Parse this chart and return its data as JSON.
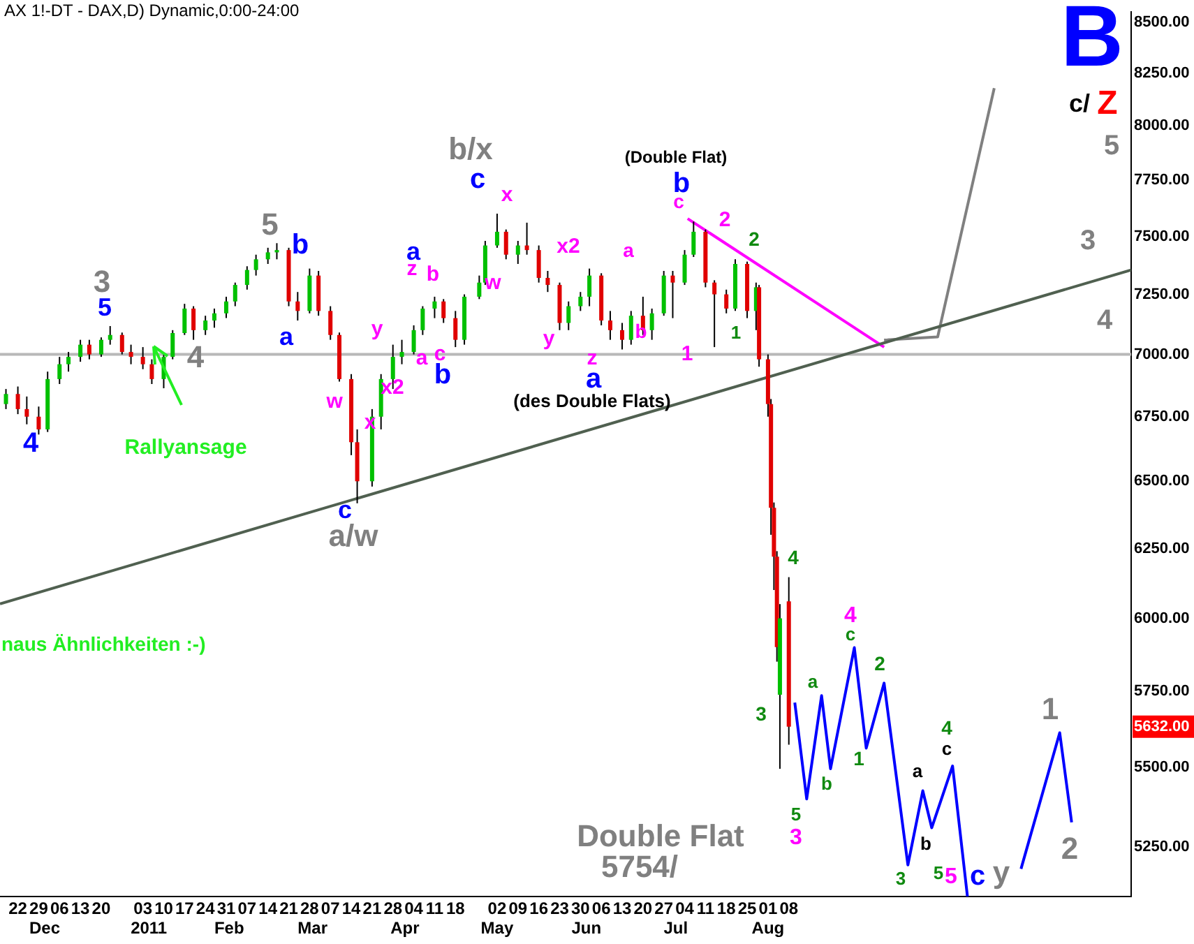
{
  "chart_data": {
    "type": "candlestick",
    "title": "AX 1!-DT - DAX,D) Dynamic,0:00-24:00",
    "x": [
      "2010-11-18",
      "2010-11-22",
      "2010-11-25",
      "2010-11-29",
      "2010-12-02",
      "2010-12-06",
      "2010-12-09",
      "2010-12-13",
      "2010-12-16",
      "2010-12-20",
      "2010-12-23",
      "2010-12-27",
      "2010-12-30",
      "2011-01-03",
      "2011-01-06",
      "2011-01-10",
      "2011-01-13",
      "2011-01-17",
      "2011-01-20",
      "2011-01-24",
      "2011-01-27",
      "2011-01-31",
      "2011-02-03",
      "2011-02-07",
      "2011-02-10",
      "2011-02-14",
      "2011-02-17",
      "2011-02-21",
      "2011-02-24",
      "2011-02-28",
      "2011-03-03",
      "2011-03-07",
      "2011-03-10",
      "2011-03-14",
      "2011-03-16",
      "2011-03-21",
      "2011-03-24",
      "2011-03-28",
      "2011-03-31",
      "2011-04-04",
      "2011-04-07",
      "2011-04-11",
      "2011-04-14",
      "2011-04-18",
      "2011-04-21",
      "2011-04-26",
      "2011-04-28",
      "2011-05-02",
      "2011-05-05",
      "2011-05-09",
      "2011-05-12",
      "2011-05-16",
      "2011-05-19",
      "2011-05-23",
      "2011-05-26",
      "2011-05-30",
      "2011-06-02",
      "2011-06-06",
      "2011-06-09",
      "2011-06-13",
      "2011-06-16",
      "2011-06-20",
      "2011-06-23",
      "2011-06-27",
      "2011-06-30",
      "2011-07-04",
      "2011-07-07",
      "2011-07-11",
      "2011-07-14",
      "2011-07-18",
      "2011-07-21",
      "2011-07-25",
      "2011-07-28",
      "2011-07-29",
      "2011-08-01",
      "2011-08-02",
      "2011-08-03",
      "2011-08-04",
      "2011-08-05",
      "2011-08-08"
    ],
    "ohlc": [
      [
        6800,
        6860,
        6780,
        6840
      ],
      [
        6840,
        6870,
        6760,
        6780
      ],
      [
        6780,
        6830,
        6720,
        6750
      ],
      [
        6750,
        6790,
        6680,
        6700
      ],
      [
        6700,
        6930,
        6690,
        6900
      ],
      [
        6900,
        6990,
        6880,
        6960
      ],
      [
        6960,
        7010,
        6930,
        6990
      ],
      [
        6990,
        7060,
        6970,
        7040
      ],
      [
        7040,
        7060,
        6980,
        7000
      ],
      [
        7000,
        7070,
        6990,
        7060
      ],
      [
        7060,
        7117,
        7040,
        7080
      ],
      [
        7080,
        7090,
        7000,
        7010
      ],
      [
        7010,
        7040,
        6960,
        6990
      ],
      [
        6990,
        7030,
        6940,
        6960
      ],
      [
        6960,
        6980,
        6880,
        6900
      ],
      [
        6900,
        7000,
        6863,
        6990
      ],
      [
        6990,
        7100,
        6980,
        7088
      ],
      [
        7088,
        7210,
        7080,
        7190
      ],
      [
        7190,
        7200,
        7060,
        7100
      ],
      [
        7100,
        7160,
        7080,
        7140
      ],
      [
        7140,
        7190,
        7110,
        7170
      ],
      [
        7170,
        7240,
        7150,
        7220
      ],
      [
        7220,
        7300,
        7200,
        7290
      ],
      [
        7290,
        7370,
        7270,
        7354
      ],
      [
        7354,
        7420,
        7330,
        7400
      ],
      [
        7400,
        7450,
        7380,
        7430
      ],
      [
        7430,
        7470,
        7400,
        7440
      ],
      [
        7440,
        7450,
        7200,
        7220
      ],
      [
        7220,
        7260,
        7140,
        7180
      ],
      [
        7180,
        7360,
        7170,
        7330
      ],
      [
        7330,
        7350,
        7160,
        7180
      ],
      [
        7180,
        7200,
        7060,
        7080
      ],
      [
        7080,
        7090,
        6890,
        6900
      ],
      [
        6900,
        6920,
        6600,
        6650
      ],
      [
        6650,
        6700,
        6417,
        6500
      ],
      [
        6500,
        6780,
        6480,
        6750
      ],
      [
        6750,
        6920,
        6700,
        6900
      ],
      [
        6900,
        7040,
        6860,
        6990
      ],
      [
        6990,
        7060,
        6960,
        7010
      ],
      [
        7010,
        7120,
        7000,
        7100
      ],
      [
        7100,
        7200,
        7080,
        7190
      ],
      [
        7190,
        7240,
        7150,
        7220
      ],
      [
        7220,
        7230,
        7130,
        7150
      ],
      [
        7150,
        7180,
        7030,
        7060
      ],
      [
        7060,
        7250,
        7040,
        7240
      ],
      [
        7240,
        7330,
        7230,
        7300
      ],
      [
        7300,
        7480,
        7290,
        7460
      ],
      [
        7460,
        7600,
        7450,
        7520
      ],
      [
        7520,
        7530,
        7400,
        7420
      ],
      [
        7420,
        7480,
        7380,
        7460
      ],
      [
        7460,
        7560,
        7420,
        7440
      ],
      [
        7440,
        7460,
        7300,
        7320
      ],
      [
        7320,
        7350,
        7260,
        7290
      ],
      [
        7290,
        7300,
        7100,
        7130
      ],
      [
        7130,
        7220,
        7100,
        7200
      ],
      [
        7200,
        7260,
        7180,
        7240
      ],
      [
        7240,
        7360,
        7200,
        7330
      ],
      [
        7330,
        7340,
        7120,
        7140
      ],
      [
        7140,
        7180,
        7060,
        7100
      ],
      [
        7100,
        7130,
        7020,
        7060
      ],
      [
        7060,
        7180,
        7040,
        7160
      ],
      [
        7160,
        7240,
        7080,
        7100
      ],
      [
        7100,
        7190,
        7060,
        7170
      ],
      [
        7170,
        7350,
        7160,
        7330
      ],
      [
        7330,
        7350,
        7150,
        7300
      ],
      [
        7300,
        7440,
        7290,
        7420
      ],
      [
        7420,
        7565,
        7410,
        7520
      ],
      [
        7520,
        7530,
        7280,
        7300
      ],
      [
        7300,
        7310,
        7030,
        7250
      ],
      [
        7250,
        7270,
        7170,
        7190
      ],
      [
        7190,
        7400,
        7180,
        7380
      ],
      [
        7380,
        7390,
        7150,
        7180
      ],
      [
        7180,
        7300,
        7100,
        7280
      ],
      [
        7280,
        7290,
        6950,
        6980
      ],
      [
        6980,
        7000,
        6750,
        6800
      ],
      [
        6800,
        6820,
        6300,
        6400
      ],
      [
        6400,
        6420,
        6100,
        6220
      ],
      [
        6220,
        6240,
        5850,
        5900
      ],
      [
        5738,
        6050,
        5495,
        6000
      ],
      [
        6060,
        6146,
        5573,
        5632
      ]
    ],
    "colors": [
      "#00c000",
      "#e00000",
      "#e00000",
      "#e00000",
      "#00c000",
      "#00c000",
      "#00c000",
      "#00c000",
      "#e00000",
      "#00c000",
      "#00c000",
      "#e00000",
      "#e00000",
      "#e00000",
      "#e00000",
      "#00c000",
      "#00c000",
      "#00c000",
      "#e00000",
      "#00c000",
      "#00c000",
      "#00c000",
      "#00c000",
      "#00c000",
      "#00c000",
      "#00c000",
      "#00c000",
      "#e00000",
      "#e00000",
      "#00c000",
      "#e00000",
      "#e00000",
      "#e00000",
      "#e00000",
      "#e00000",
      "#00c000",
      "#00c000",
      "#00c000",
      "#00c000",
      "#00c000",
      "#00c000",
      "#00c000",
      "#e00000",
      "#e00000",
      "#00c000",
      "#00c000",
      "#00c000",
      "#00c000",
      "#e00000",
      "#00c000",
      "#e00000",
      "#e00000",
      "#e00000",
      "#e00000",
      "#00c000",
      "#00c000",
      "#00c000",
      "#e00000",
      "#e00000",
      "#e00000",
      "#00c000",
      "#e00000",
      "#00c000",
      "#00c000",
      "#e00000",
      "#00c000",
      "#00c000",
      "#e00000",
      "#e00000",
      "#e00000",
      "#00c000",
      "#e00000",
      "#00c000",
      "#e00000",
      "#e00000",
      "#e00000",
      "#e00000",
      "#e00000",
      "#00c000",
      "#e00000"
    ],
    "series": [
      {
        "type": "line",
        "color": "#0000ff",
        "x": [
          "2011-08-10",
          "2011-08-14",
          "2011-08-19",
          "2011-08-22",
          "2011-08-30",
          "2011-09-03",
          "2011-09-09",
          "2011-09-17",
          "2011-09-22",
          "2011-09-25",
          "2011-10-02",
          "2011-10-07",
          "2011-10-15",
          "2011-10-25",
          "2011-11-07",
          "2011-11-11"
        ],
        "values": [
          5712,
          5399,
          5735,
          5495,
          5898,
          5562,
          5777,
          5195,
          5425,
          5309,
          5504,
          5100,
          null,
          5183,
          5612,
          5326
        ]
      },
      {
        "type": "line",
        "color": "#506050",
        "x": [
          "2010-11-16",
          "2011-12-01"
        ],
        "values": [
          6051,
          7354
        ]
      },
      {
        "type": "line",
        "color": "#ff00ff",
        "x": [
          "2011-07-05",
          "2011-09-09"
        ],
        "values": [
          7578,
          7030
        ]
      },
      {
        "type": "line",
        "color": "#808080",
        "x": [
          "2011-09-09",
          "2011-09-27",
          "2011-10-16"
        ],
        "values": [
          7059,
          7072,
          8178
        ]
      }
    ],
    "ref_lines": [
      {
        "axis": "y",
        "value": 7000,
        "color": "#b8b8b8"
      }
    ],
    "xlim": [
      "2010-11-16",
      "2011-12-01"
    ],
    "xticks": [
      {
        "value": "2010-11-22",
        "label": "22"
      },
      {
        "value": "2010-11-29",
        "label": "29"
      },
      {
        "value": "2010-12-06",
        "label": "06"
      },
      {
        "value": "2010-12-13",
        "label": "13"
      },
      {
        "value": "2010-12-20",
        "label": "20"
      },
      {
        "value": "2011-01-03",
        "label": "03"
      },
      {
        "value": "2011-01-10",
        "label": "10"
      },
      {
        "value": "2011-01-17",
        "label": "17"
      },
      {
        "value": "2011-01-24",
        "label": "24"
      },
      {
        "value": "2011-01-31",
        "label": "31"
      },
      {
        "value": "2011-02-07",
        "label": "07"
      },
      {
        "value": "2011-02-14",
        "label": "14"
      },
      {
        "value": "2011-02-21",
        "label": "21"
      },
      {
        "value": "2011-02-28",
        "label": "28"
      },
      {
        "value": "2011-03-07",
        "label": "07"
      },
      {
        "value": "2011-03-14",
        "label": "14"
      },
      {
        "value": "2011-03-21",
        "label": "21"
      },
      {
        "value": "2011-03-28",
        "label": "28"
      },
      {
        "value": "2011-04-04",
        "label": "04"
      },
      {
        "value": "2011-04-11",
        "label": "11"
      },
      {
        "value": "2011-04-18",
        "label": "18"
      },
      {
        "value": "2011-05-02",
        "label": "02"
      },
      {
        "value": "2011-05-09",
        "label": "09"
      },
      {
        "value": "2011-05-16",
        "label": "16"
      },
      {
        "value": "2011-05-23",
        "label": "23"
      },
      {
        "value": "2011-05-30",
        "label": "30"
      },
      {
        "value": "2011-06-06",
        "label": "06"
      },
      {
        "value": "2011-06-13",
        "label": "13"
      },
      {
        "value": "2011-06-20",
        "label": "20"
      },
      {
        "value": "2011-06-27",
        "label": "27"
      },
      {
        "value": "2011-07-04",
        "label": "04"
      },
      {
        "value": "2011-07-11",
        "label": "11"
      },
      {
        "value": "2011-07-18",
        "label": "18"
      },
      {
        "value": "2011-07-25",
        "label": "25"
      },
      {
        "value": "2011-08-01",
        "label": "01"
      },
      {
        "value": "2011-08-08",
        "label": "08"
      }
    ],
    "x2lim": [
      "2010-11-16",
      "2011-12-01"
    ],
    "x2ticks": [
      {
        "value": "2010-12-01",
        "label": "Dec"
      },
      {
        "value": "2011-01-05",
        "label": "2011"
      },
      {
        "value": "2011-02-01",
        "label": "Feb"
      },
      {
        "value": "2011-03-01",
        "label": "Mar"
      },
      {
        "value": "2011-04-01",
        "label": "Apr"
      },
      {
        "value": "2011-05-02",
        "label": "May"
      },
      {
        "value": "2011-06-01",
        "label": "Jun"
      },
      {
        "value": "2011-07-01",
        "label": "Jul"
      },
      {
        "value": "2011-08-01",
        "label": "Aug"
      }
    ],
    "log": "y",
    "ylim": [
      5100,
      8550
    ],
    "yticks": [
      {
        "value": 5250,
        "label": "5250.00"
      },
      {
        "value": 5500,
        "label": "5500.00"
      },
      {
        "value": 5750,
        "label": "5750.00"
      },
      {
        "value": 6000,
        "label": "6000.00"
      },
      {
        "value": 6250,
        "label": "6250.00"
      },
      {
        "value": 6500,
        "label": "6500.00"
      },
      {
        "value": 6750,
        "label": "6750.00"
      },
      {
        "value": 7000,
        "label": "7000.00"
      },
      {
        "value": 7250,
        "label": "7250.00"
      },
      {
        "value": 7500,
        "label": "7500.00"
      },
      {
        "value": 7750,
        "label": "7750.00"
      },
      {
        "value": 8000,
        "label": "8000.00"
      },
      {
        "value": 8250,
        "label": "8250.00"
      },
      {
        "value": 8500,
        "label": "8500.00"
      }
    ],
    "grid": false,
    "legend": false,
    "annotations": [
      "5632.00",
      "4",
      "3",
      "5",
      "4",
      "Rallyansage",
      {
        "text": "5",
        "x": "2011-02-17",
        "y": 7470
      },
      "b",
      "a",
      "c",
      "a/w",
      {
        "text": "w",
        "x": "2011-03-14",
        "y": 6600
      },
      "x",
      "x2",
      "y",
      "z",
      "a",
      "b",
      "a",
      "c",
      "b",
      "b/x",
      "c",
      "x",
      "w",
      "x2",
      "y",
      "z",
      "a",
      "(des Double Flats)",
      "a",
      "b",
      "1",
      "c",
      "b",
      "(Double Flat)",
      "2",
      "2",
      "1",
      "4",
      "3",
      "5",
      "3",
      "a",
      "b",
      "4",
      "c",
      "2",
      "1",
      "3",
      "a",
      "b",
      "4",
      "c",
      "5",
      "5",
      "c",
      "y",
      "1",
      "2",
      "B",
      "c/",
      "Z",
      "5",
      "3",
      "4",
      "Double Flat",
      "5754/",
      "naus Ähnlichkeiten :-)"
    ]
  }
}
